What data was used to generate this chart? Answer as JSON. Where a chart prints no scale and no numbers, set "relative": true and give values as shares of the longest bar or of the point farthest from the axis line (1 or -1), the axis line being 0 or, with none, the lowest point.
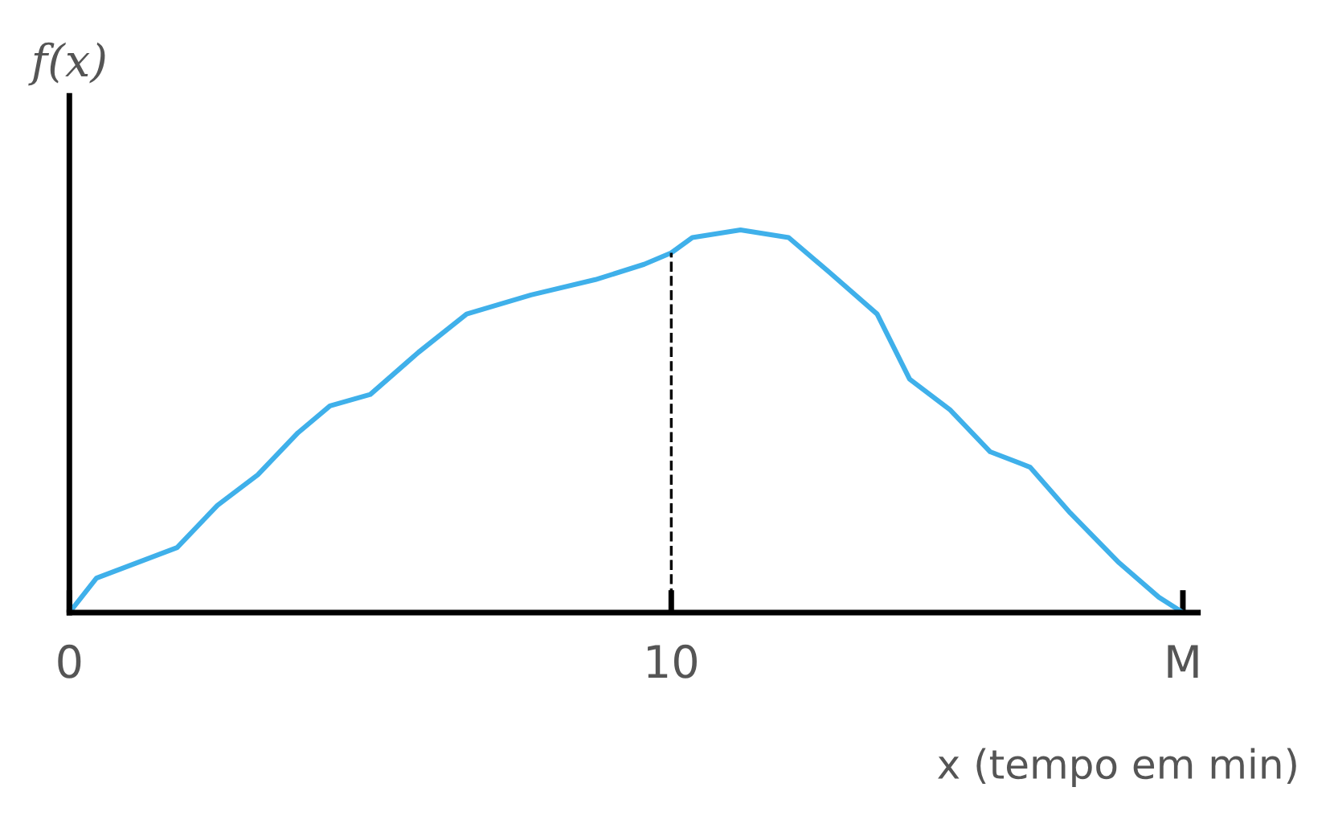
{
  "chart_data": {
    "type": "line",
    "relative": true,
    "color": "#3fb0ea",
    "x": [
      0,
      0.45,
      1.12,
      1.79,
      2.46,
      3.13,
      3.8,
      4.33,
      5.0,
      5.8,
      6.6,
      7.67,
      8.74,
      9.55,
      10,
      10.35,
      11.15,
      11.95,
      12.62,
      13.42,
      13.96,
      14.63,
      15.3,
      15.96,
      16.63,
      17.44,
      18.1,
      18.5
    ],
    "values": [
      0,
      0.09,
      0.13,
      0.17,
      0.28,
      0.36,
      0.47,
      0.54,
      0.57,
      0.68,
      0.78,
      0.83,
      0.87,
      0.91,
      0.94,
      0.98,
      1.0,
      0.98,
      0.89,
      0.78,
      0.61,
      0.53,
      0.42,
      0.38,
      0.26,
      0.13,
      0.04,
      0
    ],
    "xlim": [
      0,
      18.75
    ],
    "xticks": [
      0,
      10,
      {
        "value": 18.5,
        "label": "M"
      }
    ],
    "ylabel": "f(x)",
    "xlabel": "x (tempo em min)",
    "ref_lines": [
      {
        "axis": "x",
        "value": 10,
        "line_style": "dashed",
        "color": "#000000"
      }
    ],
    "tick_labels": "x",
    "grid": false,
    "legend": false,
    "marker": "none",
    "line_style": "solid"
  }
}
